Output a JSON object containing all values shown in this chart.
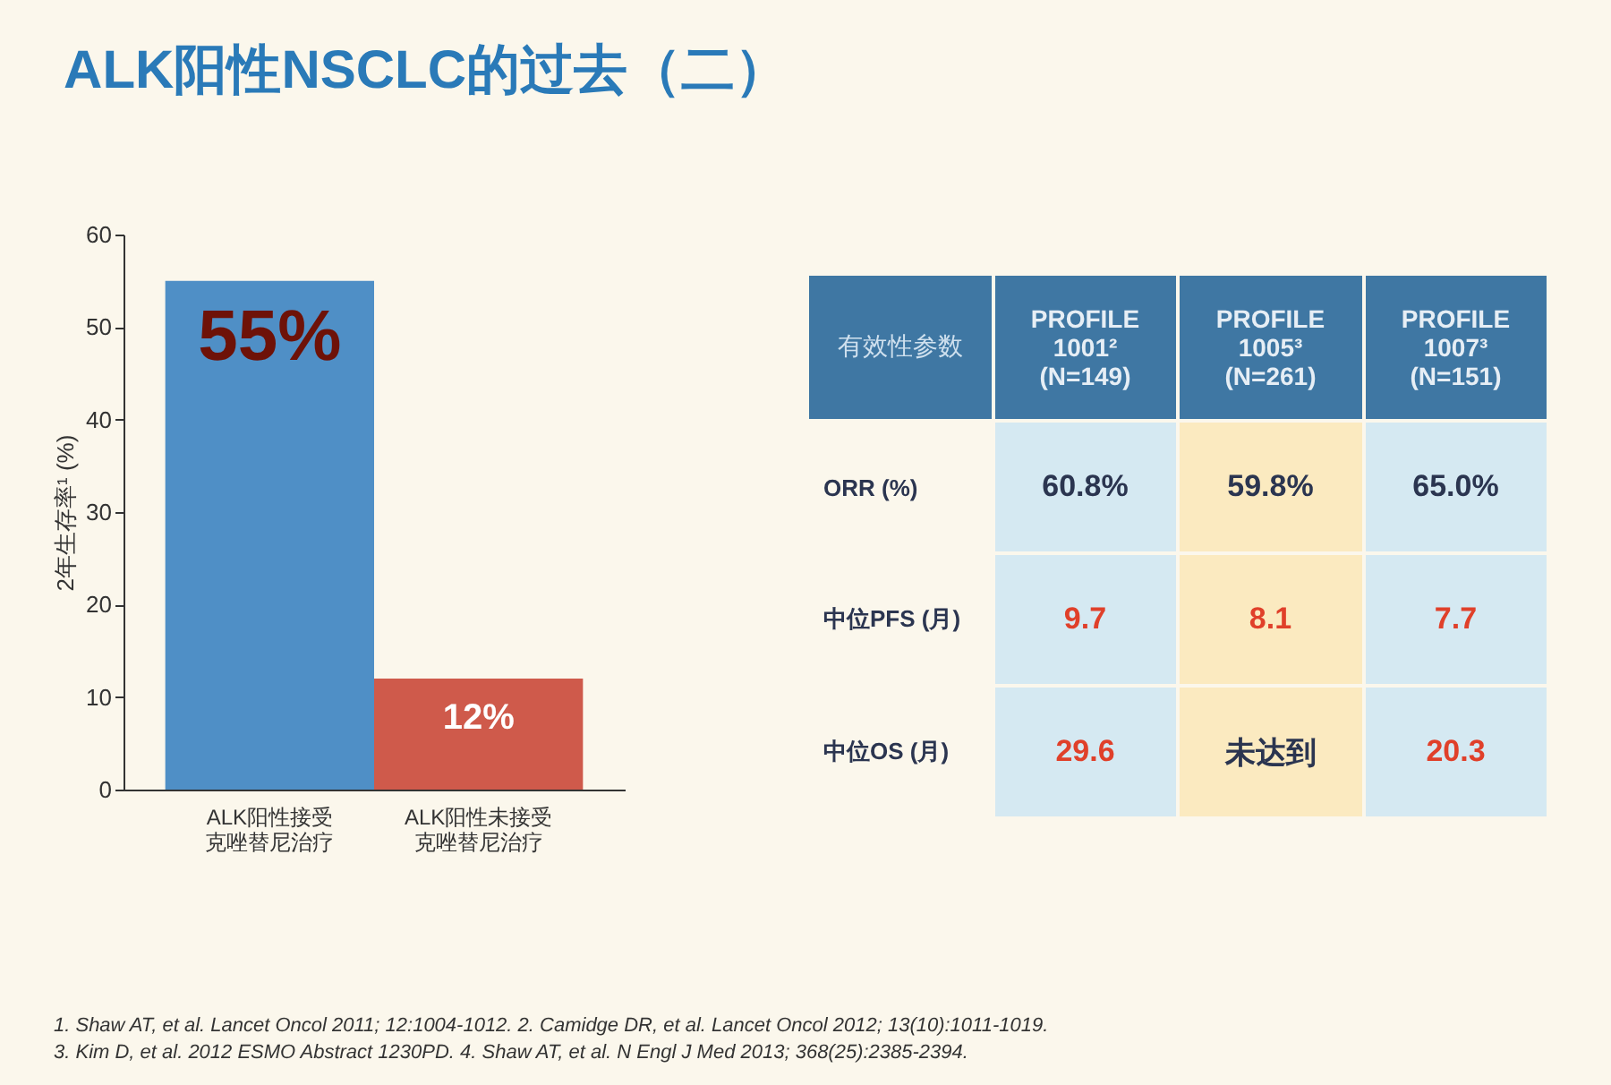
{
  "chart_data": [
    {
      "type": "bar",
      "title": "ALK阳性NSCLC的过去（二）",
      "ylabel": "2年生存率¹ (%)",
      "categories": [
        "ALK阳性接受克唑替尼治疗",
        "ALK阳性未接受克唑替尼治疗"
      ],
      "values": [
        55,
        12
      ],
      "colors": [
        "#4f8fc6",
        "#cf5a4b"
      ],
      "value_labels": [
        "55%",
        "12%"
      ],
      "ylim": [
        0,
        60
      ],
      "yticks": [
        0,
        10,
        20,
        30,
        40,
        50,
        60
      ],
      "grid": false,
      "annotations": [
        "1. Shaw AT, et al. Lancet Oncol 2011; 12:1004-1012. 2. Camidge DR, et al. Lancet Oncol 2012; 13(10):1011-1019.",
        "3. Kim D, et al. 2012 ESMO Abstract 1230PD. 4. Shaw AT, et al. N Engl J Med 2013; 368(25):2385-2394."
      ]
    },
    {
      "type": "other",
      "ylabel": "有效性参数",
      "categories": [
        "PROFILE 1001² (N=149)",
        "PROFILE 1005³ (N=261)",
        "PROFILE 1007³ (N=151)"
      ],
      "y_categories": [
        "ORR (%)",
        "中位PFS (月)",
        "中位OS (月)"
      ],
      "cell_labels": [
        [
          "60.8%",
          "59.8%",
          "65.0%"
        ],
        [
          "9.7",
          "8.1",
          "7.7"
        ],
        [
          "29.6",
          "未达到",
          "20.3"
        ]
      ]
    }
  ]
}
